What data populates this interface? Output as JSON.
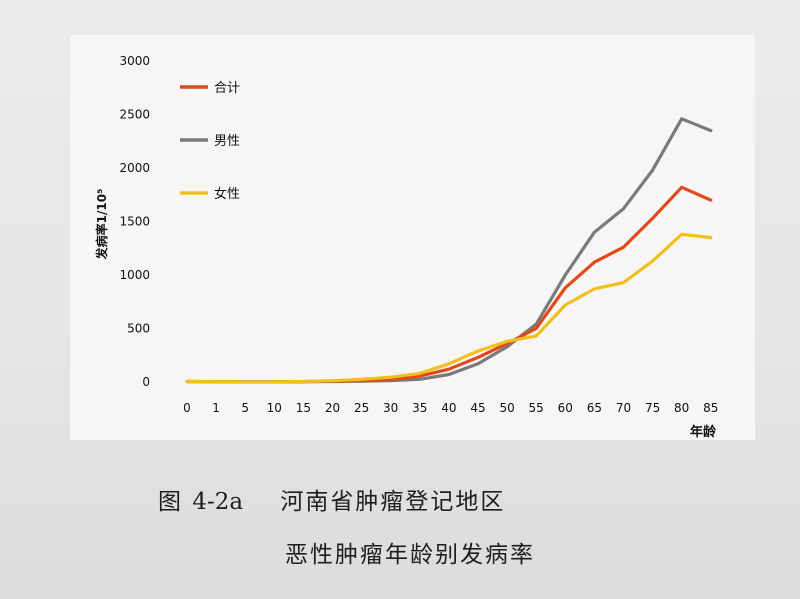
{
  "chart_data": {
    "type": "line",
    "title": "",
    "xlabel": "年龄",
    "ylabel": "发病率1/10⁵",
    "categories": [
      "0",
      "1",
      "5",
      "10",
      "15",
      "20",
      "25",
      "30",
      "35",
      "40",
      "45",
      "50",
      "55",
      "60",
      "65",
      "70",
      "75",
      "80",
      "85"
    ],
    "ylim": [
      0,
      3000
    ],
    "yticks": [
      0,
      500,
      1000,
      1500,
      2000,
      2500,
      3000
    ],
    "grid": false,
    "legend_position": "top-left",
    "series": [
      {
        "name": "合计",
        "color": "#e04a1b",
        "values": [
          5,
          3,
          2,
          2,
          4,
          8,
          12,
          25,
          55,
          120,
          230,
          360,
          500,
          880,
          1120,
          1260,
          1530,
          1820,
          1700
        ]
      },
      {
        "name": "男性",
        "color": "#7a7a7a",
        "values": [
          5,
          3,
          2,
          2,
          3,
          5,
          8,
          12,
          25,
          70,
          170,
          330,
          540,
          1000,
          1400,
          1620,
          1980,
          2460,
          2350
        ]
      },
      {
        "name": "女性",
        "color": "#f0c01e",
        "values": [
          5,
          3,
          2,
          2,
          5,
          12,
          25,
          45,
          80,
          170,
          290,
          380,
          430,
          720,
          870,
          930,
          1130,
          1380,
          1350
        ]
      }
    ]
  },
  "caption": {
    "line1_label": "图",
    "line1_number": "4-2a",
    "line1_text": "河南省肿瘤登记地区",
    "line2_text": "恶性肿瘤年龄别发病率"
  }
}
